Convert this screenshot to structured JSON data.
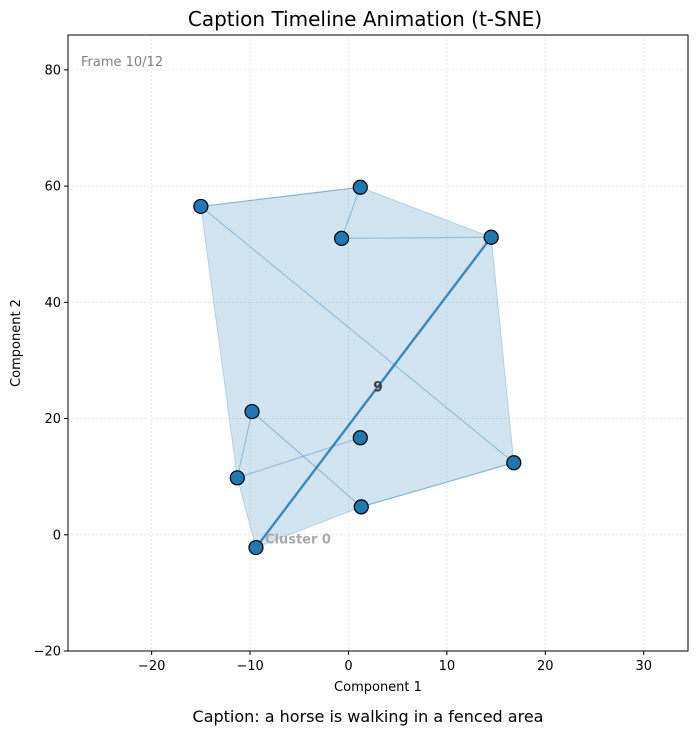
{
  "chart_data": {
    "type": "scatter",
    "title": "Caption Timeline Animation (t-SNE)",
    "xlabel": "Component 1",
    "ylabel": "Component 2",
    "xlim": [
      -28.5,
      34.5
    ],
    "ylim": [
      -20,
      86
    ],
    "xticks": [
      -20,
      -10,
      0,
      10,
      20,
      30
    ],
    "yticks": [
      -20,
      0,
      20,
      40,
      60,
      80
    ],
    "grid": true,
    "frame_label": "Frame 10/12",
    "caption": "Caption: a horse is walking in a fenced area",
    "cluster_label": "Cluster 0",
    "centroid_label": "9",
    "centroid": [
      3.0,
      25.5
    ],
    "colors": {
      "accent": "#1f77b4",
      "hull": "#1f77b4",
      "frame_text": "#808080",
      "cluster_text": "#a9a9a9",
      "centroid_text": "#404040",
      "grid": "#d9d9d9"
    },
    "points": [
      {
        "x": -15.0,
        "y": 56.5
      },
      {
        "x": 1.2,
        "y": 59.8
      },
      {
        "x": -0.7,
        "y": 51.0
      },
      {
        "x": 14.5,
        "y": 51.2
      },
      {
        "x": 16.8,
        "y": 12.4
      },
      {
        "x": -9.8,
        "y": 21.2
      },
      {
        "x": -11.3,
        "y": 9.8
      },
      {
        "x": 1.2,
        "y": 16.7
      },
      {
        "x": 1.3,
        "y": 4.8
      },
      {
        "x": -9.4,
        "y": -2.2
      }
    ],
    "hull_order": [
      0,
      1,
      3,
      4,
      8,
      9,
      6
    ],
    "trajectory_edges": [
      [
        0,
        1
      ],
      [
        1,
        2
      ],
      [
        2,
        3
      ],
      [
        0,
        4
      ],
      [
        4,
        8
      ],
      [
        8,
        5
      ],
      [
        5,
        6
      ],
      [
        6,
        7
      ]
    ],
    "highlight_edge": [
      3,
      9
    ]
  }
}
